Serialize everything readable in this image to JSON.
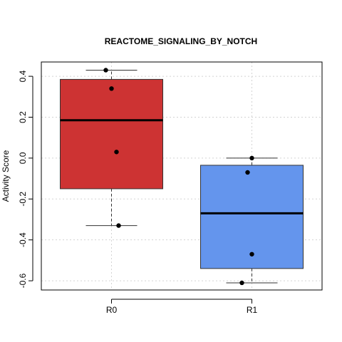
{
  "chart_data": {
    "type": "box",
    "title": "REACTOME_SIGNALING_BY_NOTCH",
    "xlabel": "",
    "ylabel": "Activity Score",
    "ylim": [
      -0.645,
      0.47
    ],
    "yticks": [
      -0.6,
      -0.4,
      -0.2,
      0.0,
      0.2,
      0.4
    ],
    "ytick_labels": [
      "-0.6",
      "-0.4",
      "-0.2",
      "0.0",
      "0.2",
      "0.4"
    ],
    "grid": true,
    "categories": [
      "R0",
      "R1"
    ],
    "boxes": [
      {
        "name": "R0",
        "color": "#CD3333",
        "whisker_low": -0.33,
        "q1": -0.15,
        "median": 0.185,
        "q3": 0.385,
        "whisker_high": 0.43,
        "points": [
          0.43,
          0.34,
          0.03,
          -0.33
        ]
      },
      {
        "name": "R1",
        "color": "#6495ED",
        "whisker_low": -0.61,
        "q1": -0.54,
        "median": -0.27,
        "q3": -0.035,
        "whisker_high": 0.0,
        "points": [
          0.0,
          -0.07,
          -0.47,
          -0.61
        ]
      }
    ]
  }
}
